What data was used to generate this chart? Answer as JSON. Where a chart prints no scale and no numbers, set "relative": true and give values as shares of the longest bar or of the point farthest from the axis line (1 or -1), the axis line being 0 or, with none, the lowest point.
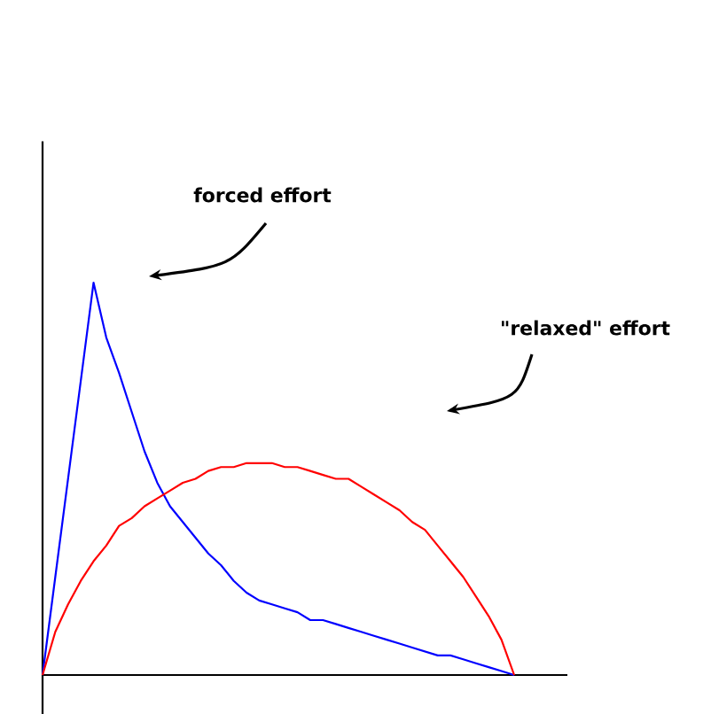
{
  "chart_data": {
    "type": "line",
    "relative": true,
    "categories": [
      null,
      null,
      null,
      null,
      null,
      null,
      null,
      null,
      null,
      null,
      null,
      null,
      null,
      null,
      null,
      null,
      null,
      null,
      null,
      null,
      null,
      null,
      null,
      null,
      null,
      null,
      null,
      null,
      null,
      null,
      null,
      null,
      null,
      null,
      null,
      null,
      null,
      null
    ],
    "series": [
      {
        "color": "#0000ff",
        "values": [
          0,
          0.25,
          0.5,
          0.75,
          1.0,
          0.86,
          0.77,
          0.67,
          0.57,
          0.49,
          0.43,
          0.39,
          0.35,
          0.31,
          0.28,
          0.24,
          0.21,
          0.19,
          0.18,
          0.17,
          0.16,
          0.14,
          0.14,
          0.13,
          0.12,
          0.11,
          0.1,
          0.09,
          0.08,
          0.07,
          0.06,
          0.05,
          0.05,
          0.04,
          0.03,
          0.02,
          0.01,
          0
        ]
      },
      {
        "color": "#ff0000",
        "values": [
          0,
          0.11,
          0.18,
          0.24,
          0.29,
          0.33,
          0.38,
          0.4,
          0.43,
          0.45,
          0.47,
          0.49,
          0.5,
          0.52,
          0.53,
          0.53,
          0.54,
          0.54,
          0.54,
          0.53,
          0.53,
          0.52,
          0.51,
          0.5,
          0.5,
          0.48,
          0.46,
          0.44,
          0.42,
          0.39,
          0.37,
          0.33,
          0.29,
          0.25,
          0.2,
          0.15,
          0.09,
          0
        ]
      }
    ],
    "annotations": [
      "forced effort",
      "\"relaxed\" effort"
    ]
  }
}
